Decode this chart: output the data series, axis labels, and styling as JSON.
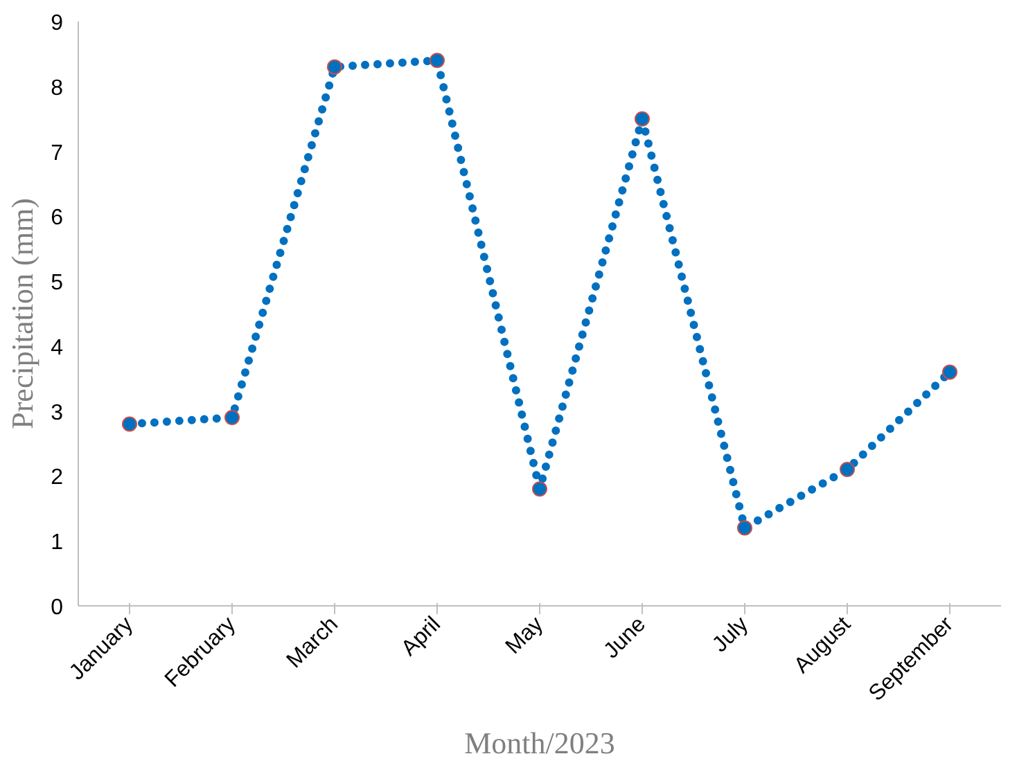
{
  "chart_data": {
    "type": "line",
    "xlabel": "Month/2023",
    "ylabel": "Precipitation (mm)",
    "categories": [
      "January",
      "February",
      "March",
      "April",
      "May",
      "June",
      "July",
      "August",
      "September"
    ],
    "series": [
      {
        "color": "#0070c0",
        "values": [
          2.8,
          2.9,
          8.3,
          8.4,
          1.8,
          7.5,
          1.2,
          2.1,
          3.6
        ]
      }
    ],
    "ylim": [
      0,
      9
    ],
    "yticks": [
      0,
      1,
      2,
      3,
      4,
      5,
      6,
      7,
      8,
      9
    ],
    "grid": false,
    "marker": "circle",
    "line_style": "dotted"
  }
}
